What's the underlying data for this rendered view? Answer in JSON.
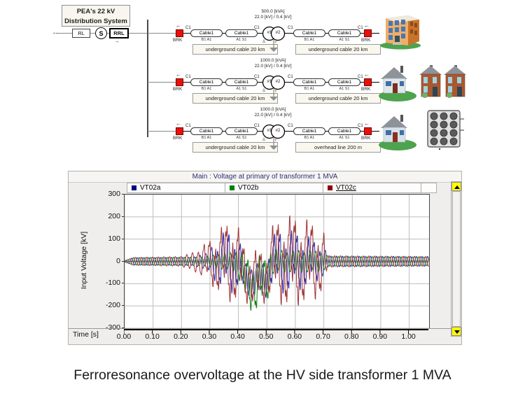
{
  "diagram": {
    "system_label": {
      "line1": "PEA's 22 kV",
      "line2": "Distribution System"
    },
    "source": {
      "arrow_left": "←",
      "rl": "RL",
      "src": "S",
      "rrl": "RRL",
      "arrow_down": "→"
    },
    "labels": {
      "brk": "BRK",
      "c1": "C1",
      "cable": "Cable1",
      "term_ba": "B1 A1",
      "term_as": "A1 S1",
      "arrow": "←",
      "tx_p": "#1",
      "tx_s": "#2",
      "delta": "Δ",
      "wye": "Y"
    },
    "rows": [
      {
        "rating_kva": "500.0 [kVA]",
        "rating_kv": "22.0 [kV] / 0.4 [kV]",
        "left_label": "underground cable 20 km",
        "right_label": "underground cable 20 km",
        "load_icon": "apartment-building"
      },
      {
        "rating_kva": "1000.0 [kVA]",
        "rating_kv": "22.0 [kV] / 0.4 [kV]",
        "left_label": "underground cable 20 km",
        "right_label": "underground cable 20 km",
        "load_icon": "houses"
      },
      {
        "rating_kva": "1000.0 [kVA]",
        "rating_kv": "22.0 [kV] / 0.4 [kV]",
        "left_label": "underground cable 20 km",
        "right_label": "overhead line 200 m",
        "load_icon": "house-and-load-bank"
      }
    ]
  },
  "plot": {
    "title": "Main : Voltage at primary of transformer 1 MVA",
    "xlabel": "Time [s]",
    "ylabel": "Input Voltage [kV]",
    "legend": [
      {
        "label": "VT02a",
        "color": "#000080",
        "underline": false
      },
      {
        "label": "VT02b",
        "color": "#008000",
        "underline": false
      },
      {
        "label": "VT02c",
        "color": "#8B0000",
        "underline": true
      }
    ]
  },
  "chart_data": {
    "type": "line",
    "title": "Main : Voltage at primary of transformer 1 MVA",
    "xlabel": "Time [s]",
    "ylabel": "Input Voltage [kV]",
    "xlim": [
      0,
      1.07
    ],
    "ylim": [
      -300,
      300
    ],
    "xticks": [
      0.0,
      0.1,
      0.2,
      0.3,
      0.4,
      0.5,
      0.6,
      0.7,
      0.8,
      0.9,
      1.0
    ],
    "xtick_labels": [
      "0.00",
      "0.10",
      "0.20",
      "0.30",
      "0.40",
      "0.50",
      "0.60",
      "0.70",
      "0.80",
      "0.90",
      "1.00"
    ],
    "yticks": [
      300,
      200,
      100,
      0,
      -100,
      -200,
      -300
    ],
    "ytick_labels": [
      "300",
      "200",
      "100",
      "0",
      "-100",
      "-200",
      "-300"
    ],
    "grid": true,
    "legend_position": "top",
    "carrier_hz": 50,
    "description": "Three-phase ferroresonance transient: steady ~±20 kV sinusoids, growing burst from ~0.25 s with peaks to ~±250-270 kV, negative-biased chaotic cluster 0.42-0.50 s (down to ~-260 kV), second burst 0.52-0.71 s, return to steady ~±20 kV after 0.72 s",
    "series": [
      {
        "name": "VT02a",
        "color": "#2a2aae",
        "phase_deg": 0,
        "amplitude_envelope": [
          [
            0,
            3
          ],
          [
            0.03,
            17
          ],
          [
            0.24,
            18
          ],
          [
            0.29,
            40
          ],
          [
            0.32,
            120
          ],
          [
            0.35,
            170
          ],
          [
            0.38,
            185
          ],
          [
            0.4,
            150
          ],
          [
            0.42,
            90
          ],
          [
            0.49,
            95
          ],
          [
            0.52,
            150
          ],
          [
            0.55,
            185
          ],
          [
            0.6,
            175
          ],
          [
            0.64,
            150
          ],
          [
            0.68,
            110
          ],
          [
            0.7,
            80
          ],
          [
            0.715,
            24
          ],
          [
            1.07,
            22
          ]
        ],
        "bias": [
          [
            0,
            0
          ],
          [
            0.4,
            0
          ],
          [
            0.425,
            -80
          ],
          [
            0.495,
            -85
          ],
          [
            0.515,
            0
          ],
          [
            1.07,
            0
          ]
        ]
      },
      {
        "name": "VT02b",
        "color": "#0e7d0e",
        "phase_deg": -120,
        "amplitude_envelope": [
          [
            0,
            3
          ],
          [
            0.03,
            17
          ],
          [
            0.28,
            20
          ],
          [
            0.33,
            35
          ],
          [
            0.38,
            45
          ],
          [
            0.41,
            120
          ],
          [
            0.44,
            160
          ],
          [
            0.48,
            165
          ],
          [
            0.505,
            140
          ],
          [
            0.52,
            70
          ],
          [
            0.57,
            55
          ],
          [
            0.62,
            60
          ],
          [
            0.67,
            55
          ],
          [
            0.7,
            45
          ],
          [
            0.715,
            22
          ],
          [
            1.07,
            20
          ]
        ],
        "bias": [
          [
            0,
            0
          ],
          [
            0.4,
            0
          ],
          [
            0.425,
            -95
          ],
          [
            0.495,
            -100
          ],
          [
            0.515,
            0
          ],
          [
            1.07,
            0
          ]
        ]
      },
      {
        "name": "VT02c",
        "color": "#a03434",
        "phase_deg": 120,
        "amplitude_envelope": [
          [
            0,
            3
          ],
          [
            0.03,
            18
          ],
          [
            0.2,
            22
          ],
          [
            0.24,
            45
          ],
          [
            0.27,
            80
          ],
          [
            0.3,
            130
          ],
          [
            0.33,
            185
          ],
          [
            0.36,
            230
          ],
          [
            0.385,
            250
          ],
          [
            0.41,
            170
          ],
          [
            0.44,
            150
          ],
          [
            0.47,
            165
          ],
          [
            0.5,
            140
          ],
          [
            0.52,
            210
          ],
          [
            0.55,
            255
          ],
          [
            0.585,
            270
          ],
          [
            0.62,
            255
          ],
          [
            0.65,
            240
          ],
          [
            0.68,
            215
          ],
          [
            0.7,
            170
          ],
          [
            0.715,
            26
          ],
          [
            1.07,
            22
          ]
        ],
        "bias": [
          [
            0,
            0
          ],
          [
            0.4,
            0
          ],
          [
            0.425,
            -70
          ],
          [
            0.495,
            -75
          ],
          [
            0.515,
            0
          ],
          [
            1.07,
            0
          ]
        ]
      }
    ]
  },
  "caption": "Ferroresonance overvoltage at the HV side transformer 1 MVA"
}
